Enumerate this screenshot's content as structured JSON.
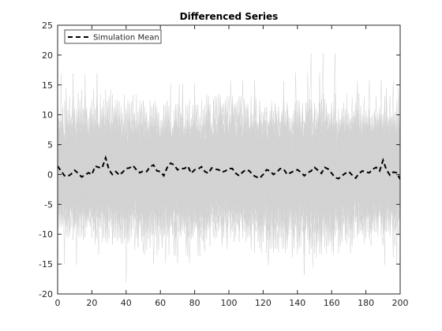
{
  "chart_data": {
    "type": "line",
    "title": "Differenced Series",
    "xlabel": "",
    "ylabel": "",
    "xlim": [
      0,
      200
    ],
    "ylim": [
      -20,
      25
    ],
    "x_ticks": [
      0,
      20,
      40,
      60,
      80,
      100,
      120,
      140,
      160,
      180,
      200
    ],
    "y_ticks": [
      -20,
      -15,
      -10,
      -5,
      0,
      5,
      10,
      15,
      20,
      25
    ],
    "x_tick_labels": [
      "0",
      "20",
      "40",
      "60",
      "80",
      "100",
      "120",
      "140",
      "160",
      "180",
      "200"
    ],
    "y_tick_labels": [
      "-20",
      "-15",
      "-10",
      "-5",
      "0",
      "5",
      "10",
      "15",
      "20",
      "25"
    ],
    "grid": false,
    "legend": {
      "location": "top-left",
      "entries": [
        "Simulation Mean"
      ]
    },
    "simulation_paths": {
      "count": 100,
      "length": 201,
      "typical_range": [
        -15,
        15
      ],
      "color": "#d3d3d3"
    },
    "series": [
      {
        "name": "Simulation Mean",
        "style": "dashed",
        "color": "#000000",
        "x": [
          0,
          2,
          4,
          6,
          8,
          10,
          12,
          14,
          16,
          18,
          20,
          22,
          24,
          26,
          28,
          30,
          32,
          34,
          36,
          38,
          40,
          42,
          44,
          46,
          48,
          50,
          52,
          54,
          56,
          58,
          60,
          62,
          64,
          66,
          68,
          70,
          72,
          74,
          76,
          78,
          80,
          82,
          84,
          86,
          88,
          90,
          92,
          94,
          96,
          98,
          100,
          102,
          104,
          106,
          108,
          110,
          112,
          114,
          116,
          118,
          120,
          122,
          124,
          126,
          128,
          130,
          132,
          134,
          136,
          138,
          140,
          142,
          144,
          146,
          148,
          150,
          152,
          154,
          156,
          158,
          160,
          162,
          164,
          166,
          168,
          170,
          172,
          174,
          176,
          178,
          180,
          182,
          184,
          186,
          188,
          190,
          192,
          194,
          196,
          198,
          200
        ],
        "y": [
          1.4,
          0.6,
          -0.2,
          -0.3,
          0.1,
          0.7,
          0.2,
          -0.4,
          -0.1,
          0.3,
          0.0,
          1.4,
          1.2,
          1.1,
          2.8,
          0.8,
          0.0,
          0.5,
          -0.1,
          0.4,
          1.0,
          1.1,
          1.5,
          0.8,
          0.3,
          0.6,
          0.5,
          1.3,
          1.6,
          0.6,
          0.5,
          -0.2,
          1.2,
          1.9,
          1.6,
          0.8,
          1.0,
          1.0,
          1.4,
          0.2,
          0.8,
          0.9,
          1.3,
          0.5,
          0.2,
          1.1,
          0.9,
          0.8,
          0.4,
          0.6,
          1.0,
          1.0,
          0.2,
          -0.2,
          0.4,
          0.8,
          0.6,
          -0.1,
          -0.4,
          -0.6,
          0.0,
          0.8,
          0.6,
          0.0,
          0.4,
          1.0,
          0.9,
          0.0,
          0.3,
          0.6,
          0.8,
          0.4,
          -0.2,
          0.3,
          0.6,
          1.2,
          0.7,
          0.2,
          1.2,
          0.9,
          0.2,
          -0.5,
          -0.7,
          -0.2,
          0.2,
          0.5,
          -0.1,
          -0.6,
          0.2,
          0.6,
          0.4,
          0.3,
          0.9,
          1.2,
          0.6,
          2.4,
          0.8,
          -0.1,
          0.4,
          0.3,
          -0.8
        ]
      }
    ]
  }
}
